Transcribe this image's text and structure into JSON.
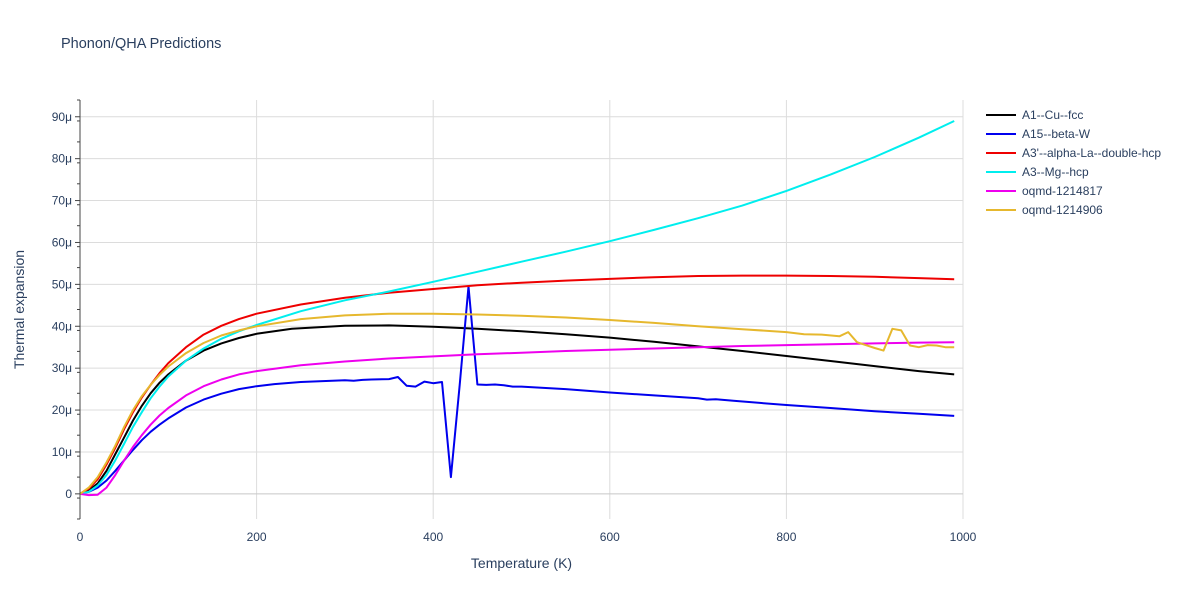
{
  "title": "Phonon/QHA Predictions",
  "chart_data": {
    "type": "line",
    "title": "Phonon/QHA Predictions",
    "xlabel": "Temperature (K)",
    "ylabel": "Thermal expansion",
    "xlim": [
      0,
      1000
    ],
    "ylim": [
      -6e-06,
      9.4e-05
    ],
    "xticks": [
      0,
      200,
      400,
      600,
      800,
      1000
    ],
    "xtick_labels": [
      "0",
      "200",
      "400",
      "600",
      "800",
      "1000"
    ],
    "yticks": [
      0,
      1e-05,
      2e-05,
      3e-05,
      4e-05,
      5e-05,
      6e-05,
      7e-05,
      8e-05,
      9e-05
    ],
    "ytick_labels": [
      "0",
      "10μ",
      "20μ",
      "30μ",
      "40μ",
      "50μ",
      "60μ",
      "70μ",
      "80μ",
      "90μ"
    ],
    "grid": true,
    "legend_position": "right",
    "series": [
      {
        "name": "A1--Cu--fcc",
        "color": "#000000",
        "x": [
          0,
          10,
          20,
          30,
          40,
          50,
          60,
          70,
          80,
          90,
          100,
          120,
          140,
          160,
          180,
          200,
          240,
          300,
          350,
          400,
          450,
          500,
          550,
          600,
          650,
          700,
          750,
          800,
          850,
          900,
          950,
          990
        ],
        "y": [
          0,
          8e-07,
          2.5e-06,
          5.5e-06,
          9.5e-06,
          1.35e-05,
          1.75e-05,
          2.1e-05,
          2.4e-05,
          2.65e-05,
          2.85e-05,
          3.18e-05,
          3.42e-05,
          3.59e-05,
          3.72e-05,
          3.82e-05,
          3.94e-05,
          4.01e-05,
          4.02e-05,
          3.99e-05,
          3.94e-05,
          3.88e-05,
          3.81e-05,
          3.73e-05,
          3.63e-05,
          3.52e-05,
          3.41e-05,
          3.29e-05,
          3.17e-05,
          3.05e-05,
          2.93e-05,
          2.85e-05
        ]
      },
      {
        "name": "A15--beta-W",
        "color": "#0000ee",
        "x": [
          0,
          10,
          20,
          30,
          40,
          50,
          60,
          70,
          80,
          90,
          100,
          120,
          140,
          160,
          180,
          200,
          220,
          250,
          300,
          310,
          320,
          330,
          350,
          360,
          370,
          380,
          390,
          400,
          410,
          420,
          430,
          440,
          450,
          460,
          470,
          480,
          490,
          500,
          550,
          600,
          650,
          700,
          710,
          720,
          730,
          740,
          800,
          850,
          900,
          950,
          990
        ],
        "y": [
          0,
          5e-07,
          1.5e-06,
          3.2e-06,
          5.5e-06,
          8e-06,
          1.05e-05,
          1.28e-05,
          1.48e-05,
          1.65e-05,
          1.8e-05,
          2.06e-05,
          2.25e-05,
          2.39e-05,
          2.5e-05,
          2.57e-05,
          2.62e-05,
          2.67e-05,
          2.71e-05,
          2.7e-05,
          2.72e-05,
          2.73e-05,
          2.74e-05,
          2.79e-05,
          2.58e-05,
          2.56e-05,
          2.68e-05,
          2.64e-05,
          2.67e-05,
          4e-06,
          2.6e-05,
          4.95e-05,
          2.61e-05,
          2.6e-05,
          2.61e-05,
          2.59e-05,
          2.56e-05,
          2.56e-05,
          2.5e-05,
          2.42e-05,
          2.35e-05,
          2.28e-05,
          2.25e-05,
          2.26e-05,
          2.24e-05,
          2.22e-05,
          2.12e-05,
          2.05e-05,
          1.97e-05,
          1.91e-05,
          1.86e-05
        ]
      },
      {
        "name": "A3'--alpha-La--double-hcp",
        "color": "#ee0000",
        "x": [
          0,
          10,
          20,
          30,
          40,
          50,
          60,
          70,
          80,
          90,
          100,
          120,
          140,
          160,
          180,
          200,
          250,
          300,
          350,
          400,
          450,
          500,
          550,
          600,
          650,
          700,
          750,
          800,
          850,
          900,
          950,
          990
        ],
        "y": [
          0,
          1.2e-06,
          3.5e-06,
          7e-06,
          1.1e-05,
          1.55e-05,
          1.95e-05,
          2.3e-05,
          2.6e-05,
          2.88e-05,
          3.12e-05,
          3.5e-05,
          3.8e-05,
          4.01e-05,
          4.17e-05,
          4.3e-05,
          4.52e-05,
          4.68e-05,
          4.8e-05,
          4.89e-05,
          4.98e-05,
          5.04e-05,
          5.09e-05,
          5.13e-05,
          5.17e-05,
          5.2e-05,
          5.21e-05,
          5.21e-05,
          5.2e-05,
          5.18e-05,
          5.15e-05,
          5.12e-05
        ]
      },
      {
        "name": "A3--Mg--hcp",
        "color": "#00eeee",
        "x": [
          0,
          10,
          20,
          30,
          40,
          50,
          60,
          70,
          80,
          90,
          100,
          120,
          140,
          160,
          180,
          200,
          250,
          300,
          350,
          400,
          450,
          500,
          550,
          600,
          650,
          700,
          750,
          800,
          850,
          900,
          950,
          990
        ],
        "y": [
          0,
          5e-07,
          2e-06,
          4.5e-06,
          8e-06,
          1.2e-05,
          1.6e-05,
          1.95e-05,
          2.28e-05,
          2.56e-05,
          2.8e-05,
          3.18e-05,
          3.47e-05,
          3.7e-05,
          3.88e-05,
          4.03e-05,
          4.36e-05,
          4.62e-05,
          4.83e-05,
          5.06e-05,
          5.3e-05,
          5.54e-05,
          5.78e-05,
          6.03e-05,
          6.3e-05,
          6.58e-05,
          6.88e-05,
          7.23e-05,
          7.62e-05,
          8.04e-05,
          8.5e-05,
          8.9e-05
        ]
      },
      {
        "name": "oqmd-1214817",
        "color": "#ee00ee",
        "x": [
          0,
          10,
          20,
          30,
          40,
          50,
          60,
          70,
          80,
          90,
          100,
          120,
          140,
          160,
          180,
          200,
          250,
          300,
          350,
          400,
          450,
          500,
          550,
          600,
          650,
          700,
          750,
          800,
          850,
          900,
          950,
          990
        ],
        "y": [
          0,
          -3e-07,
          -2e-07,
          1.5e-06,
          4.5e-06,
          8e-06,
          1.12e-05,
          1.4e-05,
          1.65e-05,
          1.87e-05,
          2.05e-05,
          2.35e-05,
          2.57e-05,
          2.73e-05,
          2.85e-05,
          2.93e-05,
          3.07e-05,
          3.16e-05,
          3.23e-05,
          3.28e-05,
          3.33e-05,
          3.37e-05,
          3.41e-05,
          3.44e-05,
          3.47e-05,
          3.5e-05,
          3.53e-05,
          3.55e-05,
          3.57e-05,
          3.59e-05,
          3.61e-05,
          3.62e-05
        ]
      },
      {
        "name": "oqmd-1214906",
        "color": "#e6b82e",
        "x": [
          0,
          10,
          20,
          30,
          40,
          50,
          60,
          70,
          80,
          90,
          100,
          120,
          140,
          160,
          180,
          200,
          250,
          300,
          350,
          400,
          450,
          500,
          550,
          600,
          650,
          700,
          750,
          800,
          820,
          840,
          860,
          870,
          880,
          900,
          910,
          920,
          930,
          940,
          950,
          960,
          970,
          980,
          990
        ],
        "y": [
          0,
          1.5e-06,
          4e-06,
          7.5e-06,
          1.15e-05,
          1.6e-05,
          2e-05,
          2.33e-05,
          2.6e-05,
          2.84e-05,
          3.04e-05,
          3.36e-05,
          3.6e-05,
          3.78e-05,
          3.9e-05,
          4e-05,
          4.17e-05,
          4.26e-05,
          4.3e-05,
          4.3e-05,
          4.28e-05,
          4.25e-05,
          4.21e-05,
          4.15e-05,
          4.08e-05,
          4e-05,
          3.93e-05,
          3.86e-05,
          3.81e-05,
          3.8e-05,
          3.76e-05,
          3.86e-05,
          3.62e-05,
          3.48e-05,
          3.42e-05,
          3.94e-05,
          3.9e-05,
          3.54e-05,
          3.5e-05,
          3.55e-05,
          3.54e-05,
          3.5e-05,
          3.5e-05
        ]
      }
    ]
  }
}
